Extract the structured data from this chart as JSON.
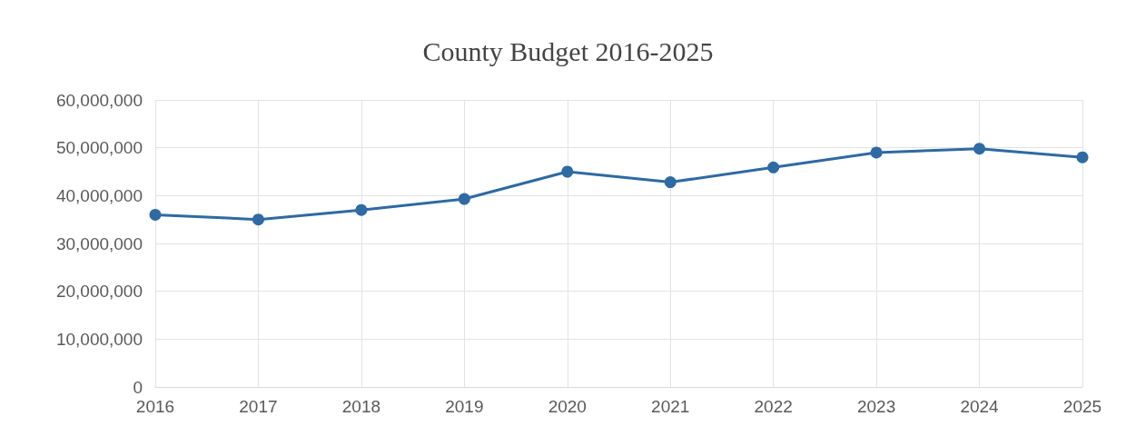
{
  "chart_data": {
    "type": "line",
    "title": "County Budget 2016-2025",
    "categories": [
      "2016",
      "2017",
      "2018",
      "2019",
      "2020",
      "2021",
      "2022",
      "2023",
      "2024",
      "2025"
    ],
    "series": [
      {
        "color": "#2e6aa3",
        "values": [
          36000000,
          35000000,
          37000000,
          39300000,
          45000000,
          42800000,
          45900000,
          49000000,
          49800000,
          48000000
        ]
      }
    ],
    "ylim": [
      0,
      60000000
    ],
    "yticks": [
      0,
      {
        "value": 10000000,
        "label": "10,000,000"
      },
      {
        "value": 20000000,
        "label": "20,000,000"
      },
      {
        "value": 30000000,
        "label": "30,000,000"
      },
      {
        "value": 40000000,
        "label": "40,000,000"
      },
      {
        "value": 50000000,
        "label": "50,000,000"
      },
      {
        "value": 60000000,
        "label": "60,000,000"
      }
    ],
    "grid": true,
    "marker": "circle",
    "line_style": "solid"
  }
}
